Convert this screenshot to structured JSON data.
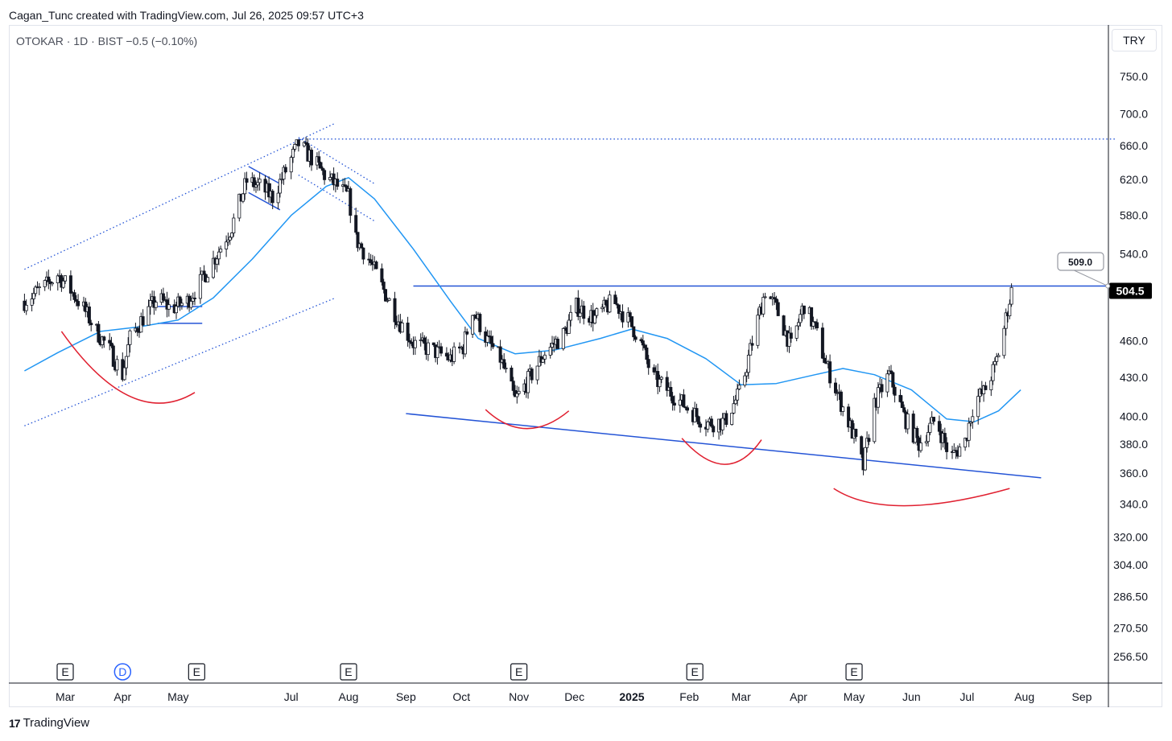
{
  "header": {
    "attribution": "Cagan_Tunc created with TradingView.com, Jul 26, 2025 09:57 UTC+3"
  },
  "legend": {
    "text": "OTOKAR · 1D · BIST  −0.5 (−0.10%)"
  },
  "currency": "TRY",
  "footer": {
    "brand": "TradingView",
    "brand_icon": "tradingview-logo-icon"
  },
  "colors": {
    "candle": "#131722",
    "moving_average": "#2196f3",
    "trendline": "#2454d6",
    "arc": "#e02030",
    "price_tag_bg": "#000000",
    "price_tag_fg": "#ffffff"
  },
  "chart_data": {
    "type": "candlestick",
    "symbol": "OTOKAR",
    "interval": "1D",
    "exchange": "BIST",
    "change": "−0.5 (−0.10%)",
    "y_scale": "log",
    "ylim": [
      245,
      790
    ],
    "y_ticks": [
      "750.0",
      "700.0",
      "660.0",
      "620.0",
      "580.0",
      "540.0",
      "460.0",
      "430.0",
      "400.0",
      "380.0",
      "360.0",
      "340.0",
      "320.00",
      "304.00",
      "286.50",
      "270.50",
      "256.50"
    ],
    "x_labels": [
      {
        "label": "Mar",
        "date": "2024-03-01",
        "bold": false
      },
      {
        "label": "Apr",
        "date": "2024-04-01",
        "bold": false
      },
      {
        "label": "May",
        "date": "2024-05-01",
        "bold": false
      },
      {
        "label": "Jul",
        "date": "2024-07-01",
        "bold": false
      },
      {
        "label": "Aug",
        "date": "2024-08-01",
        "bold": false
      },
      {
        "label": "Sep",
        "date": "2024-09-01",
        "bold": false
      },
      {
        "label": "Oct",
        "date": "2024-10-01",
        "bold": false
      },
      {
        "label": "Nov",
        "date": "2024-11-01",
        "bold": false
      },
      {
        "label": "Dec",
        "date": "2024-12-01",
        "bold": false
      },
      {
        "label": "2025",
        "date": "2025-01-01",
        "bold": true
      },
      {
        "label": "Feb",
        "date": "2025-02-01",
        "bold": false
      },
      {
        "label": "Mar",
        "date": "2025-03-01",
        "bold": false
      },
      {
        "label": "Apr",
        "date": "2025-04-01",
        "bold": false
      },
      {
        "label": "May",
        "date": "2025-05-01",
        "bold": false
      },
      {
        "label": "Jun",
        "date": "2025-06-01",
        "bold": false
      },
      {
        "label": "Jul",
        "date": "2025-07-01",
        "bold": false
      },
      {
        "label": "Aug",
        "date": "2025-08-01",
        "bold": false
      },
      {
        "label": "Sep",
        "date": "2025-09-01",
        "bold": false
      }
    ],
    "last_price": "504.5",
    "annotation_price": "509.0",
    "events": [
      {
        "label": "E",
        "date": "2024-03-01",
        "type": "earnings"
      },
      {
        "label": "D",
        "date": "2024-04-01",
        "type": "dividend"
      },
      {
        "label": "E",
        "date": "2024-05-11",
        "type": "earnings"
      },
      {
        "label": "E",
        "date": "2024-08-01",
        "type": "earnings"
      },
      {
        "label": "E",
        "date": "2024-11-01",
        "type": "earnings"
      },
      {
        "label": "E",
        "date": "2025-02-04",
        "type": "earnings"
      },
      {
        "label": "E",
        "date": "2025-05-01",
        "type": "earnings"
      }
    ],
    "close_path": [
      [
        "2024-02-08",
        495
      ],
      [
        "2024-02-20",
        510
      ],
      [
        "2024-02-26",
        520
      ],
      [
        "2024-03-04",
        505
      ],
      [
        "2024-03-11",
        488
      ],
      [
        "2024-03-18",
        468
      ],
      [
        "2024-03-25",
        452
      ],
      [
        "2024-04-01",
        432
      ],
      [
        "2024-04-05",
        462
      ],
      [
        "2024-04-12",
        480
      ],
      [
        "2024-04-20",
        498
      ],
      [
        "2024-04-27",
        488
      ],
      [
        "2024-05-06",
        495
      ],
      [
        "2024-05-14",
        515
      ],
      [
        "2024-05-22",
        540
      ],
      [
        "2024-05-30",
        568
      ],
      [
        "2024-06-07",
        618
      ],
      [
        "2024-06-14",
        612
      ],
      [
        "2024-06-21",
        600
      ],
      [
        "2024-06-28",
        630
      ],
      [
        "2024-07-05",
        662
      ],
      [
        "2024-07-12",
        645
      ],
      [
        "2024-07-19",
        625
      ],
      [
        "2024-07-26",
        612
      ],
      [
        "2024-08-01",
        600
      ],
      [
        "2024-08-05",
        555
      ],
      [
        "2024-08-12",
        535
      ],
      [
        "2024-08-20",
        505
      ],
      [
        "2024-08-28",
        478
      ],
      [
        "2024-09-05",
        458
      ],
      [
        "2024-09-15",
        452
      ],
      [
        "2024-09-25",
        445
      ],
      [
        "2024-10-02",
        455
      ],
      [
        "2024-10-07",
        488
      ],
      [
        "2024-10-15",
        460
      ],
      [
        "2024-10-22",
        445
      ],
      [
        "2024-10-30",
        412
      ],
      [
        "2024-11-05",
        425
      ],
      [
        "2024-11-15",
        450
      ],
      [
        "2024-11-25",
        465
      ],
      [
        "2024-12-02",
        490
      ],
      [
        "2024-12-12",
        480
      ],
      [
        "2024-12-22",
        495
      ],
      [
        "2024-12-30",
        478
      ],
      [
        "2025-01-05",
        462
      ],
      [
        "2025-01-12",
        430
      ],
      [
        "2025-01-22",
        418
      ],
      [
        "2025-02-01",
        405
      ],
      [
        "2025-02-10",
        395
      ],
      [
        "2025-02-20",
        396
      ],
      [
        "2025-03-01",
        420
      ],
      [
        "2025-03-08",
        465
      ],
      [
        "2025-03-14",
        505
      ],
      [
        "2025-03-20",
        488
      ],
      [
        "2025-03-28",
        455
      ],
      [
        "2025-04-04",
        492
      ],
      [
        "2025-04-10",
        470
      ],
      [
        "2025-04-16",
        440
      ],
      [
        "2025-04-24",
        410
      ],
      [
        "2025-05-01",
        385
      ],
      [
        "2025-05-06",
        364
      ],
      [
        "2025-05-12",
        410
      ],
      [
        "2025-05-20",
        432
      ],
      [
        "2025-05-28",
        400
      ],
      [
        "2025-06-05",
        380
      ],
      [
        "2025-06-14",
        398
      ],
      [
        "2025-06-22",
        370
      ],
      [
        "2025-06-30",
        382
      ],
      [
        "2025-07-05",
        412
      ],
      [
        "2025-07-10",
        418
      ],
      [
        "2025-07-16",
        438
      ],
      [
        "2025-07-20",
        462
      ],
      [
        "2025-07-23",
        488
      ],
      [
        "2025-07-25",
        504.5
      ]
    ],
    "moving_average": [
      [
        "2024-02-08",
        435
      ],
      [
        "2024-02-26",
        450
      ],
      [
        "2024-03-20",
        468
      ],
      [
        "2024-04-10",
        472
      ],
      [
        "2024-05-01",
        478
      ],
      [
        "2024-05-20",
        498
      ],
      [
        "2024-06-10",
        535
      ],
      [
        "2024-07-01",
        580
      ],
      [
        "2024-07-20",
        612
      ],
      [
        "2024-08-01",
        622
      ],
      [
        "2024-08-15",
        598
      ],
      [
        "2024-09-05",
        545
      ],
      [
        "2024-09-25",
        495
      ],
      [
        "2024-10-10",
        462
      ],
      [
        "2024-10-30",
        449
      ],
      [
        "2024-11-20",
        452
      ],
      [
        "2024-12-15",
        462
      ],
      [
        "2025-01-01",
        470
      ],
      [
        "2025-01-20",
        462
      ],
      [
        "2025-02-10",
        445
      ],
      [
        "2025-03-01",
        424
      ],
      [
        "2025-03-20",
        425
      ],
      [
        "2025-04-10",
        432
      ],
      [
        "2025-04-25",
        437
      ],
      [
        "2025-05-12",
        432
      ],
      [
        "2025-06-01",
        420
      ],
      [
        "2025-06-20",
        398
      ],
      [
        "2025-07-05",
        396
      ],
      [
        "2025-07-18",
        404
      ],
      [
        "2025-07-30",
        420
      ]
    ],
    "horizontal_levels": [
      {
        "name": "resistance",
        "price": 509,
        "from": "2024-09-05",
        "to": "2025-09-20",
        "style": "solid"
      },
      {
        "name": "ath-level",
        "price": 668,
        "from": "2024-07-05",
        "to": "2025-09-20",
        "style": "dotted"
      }
    ],
    "trendlines": [
      {
        "name": "support-trendline",
        "from": [
          "2024-09-01",
          402
        ],
        "to": [
          "2025-08-10",
          357
        ],
        "style": "solid"
      },
      {
        "name": "channel-upper",
        "from": [
          "2024-02-08",
          525
        ],
        "to": [
          "2024-07-25",
          688
        ],
        "style": "dotted"
      },
      {
        "name": "channel-lower",
        "from": [
          "2024-02-08",
          393
        ],
        "to": [
          "2024-07-25",
          498
        ],
        "style": "dotted"
      },
      {
        "name": "pullback-upper",
        "from": [
          "2024-07-05",
          670
        ],
        "to": [
          "2024-08-15",
          615
        ],
        "style": "dotted"
      },
      {
        "name": "pullback-lower",
        "from": [
          "2024-07-05",
          625
        ],
        "to": [
          "2024-08-15",
          574
        ],
        "style": "dotted"
      },
      {
        "name": "flag-upper",
        "from": [
          "2024-06-08",
          635
        ],
        "to": [
          "2024-06-25",
          615
        ],
        "style": "solid"
      },
      {
        "name": "flag-lower",
        "from": [
          "2024-06-08",
          605
        ],
        "to": [
          "2024-06-25",
          586
        ],
        "style": "solid"
      }
    ],
    "boxes": [
      {
        "name": "consolidation-box",
        "from": "2024-04-20",
        "to": "2024-05-14",
        "top": 490,
        "bottom": 475
      }
    ],
    "arcs": [
      {
        "name": "arc-1",
        "from": [
          "2024-02-28",
          468
        ],
        "bottom": [
          "2024-04-05",
          415
        ],
        "to": [
          "2024-05-10",
          418
        ]
      },
      {
        "name": "arc-2",
        "from": [
          "2024-10-14",
          405
        ],
        "bottom": [
          "2024-11-05",
          391
        ],
        "to": [
          "2024-11-28",
          404
        ]
      },
      {
        "name": "arc-3",
        "from": [
          "2025-01-28",
          384
        ],
        "bottom": [
          "2025-02-20",
          366
        ],
        "to": [
          "2025-03-12",
          383
        ]
      },
      {
        "name": "arc-4",
        "from": [
          "2025-04-20",
          350
        ],
        "bottom": [
          "2025-05-28",
          339
        ],
        "to": [
          "2025-07-24",
          350
        ]
      }
    ]
  }
}
